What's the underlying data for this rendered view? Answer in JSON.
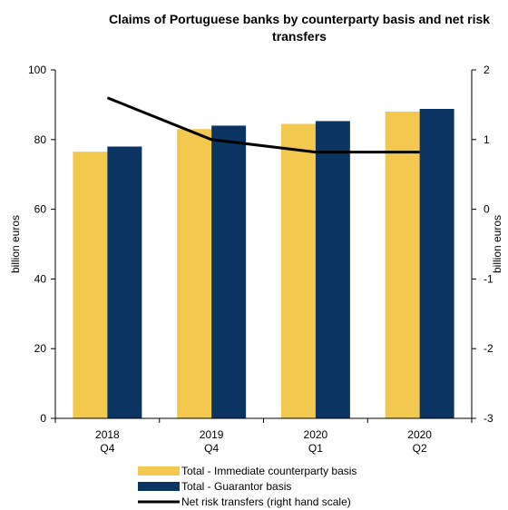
{
  "chart_data": {
    "type": "bar",
    "title": "Claims of Portuguese banks by counterparty basis and net risk transfers",
    "categories": [
      [
        "2018",
        "Q4"
      ],
      [
        "2019",
        "Q4"
      ],
      [
        "2020",
        "Q1"
      ],
      [
        "2020",
        "Q2"
      ]
    ],
    "series": [
      {
        "name": "Total - Immediate counterparty basis",
        "type": "bar",
        "axis": "left",
        "color": "#F2C84F",
        "values": [
          76.5,
          83.0,
          84.5,
          88.0
        ]
      },
      {
        "name": "Total - Guarantor basis",
        "type": "bar",
        "axis": "left",
        "color": "#0B3463",
        "values": [
          78.0,
          84.0,
          85.3,
          88.8
        ]
      },
      {
        "name": "Net risk transfers  (right hand scale)",
        "type": "line",
        "axis": "right",
        "color": "#000000",
        "values": [
          1.6,
          1.0,
          0.82,
          0.82
        ]
      }
    ],
    "ylabel": "billion euros",
    "y2label": "billion euros",
    "ylim": [
      0,
      100
    ],
    "yticks": [
      0,
      20,
      40,
      60,
      80,
      100
    ],
    "y2lim": [
      -3,
      2
    ],
    "y2ticks": [
      -3,
      -2,
      -1,
      0,
      1,
      2
    ],
    "grid": false,
    "legend_position": "bottom"
  }
}
